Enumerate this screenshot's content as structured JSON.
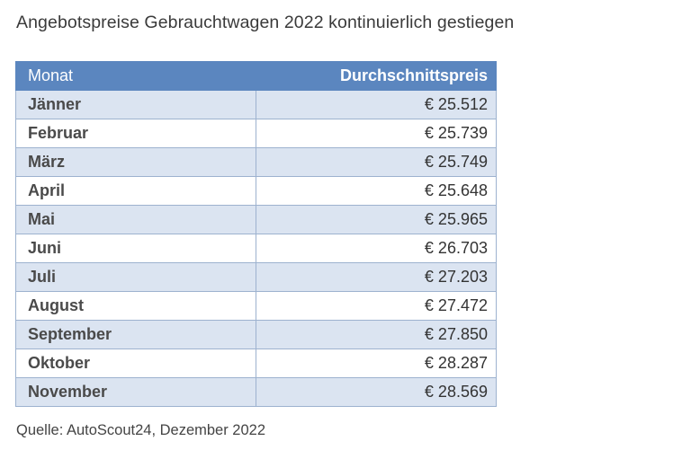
{
  "title": "Angebotspreise Gebrauchtwagen 2022 kontinuierlich gestiegen",
  "source": "Quelle: AutoScout24, Dezember 2022",
  "chart_data": {
    "type": "table",
    "title": "Angebotspreise Gebrauchtwagen 2022 kontinuierlich gestiegen",
    "columns": [
      "Monat",
      "Durchschnittspreis"
    ],
    "rows": [
      {
        "month": "Jänner",
        "price": "€ 25.512",
        "value": 25512
      },
      {
        "month": "Februar",
        "price": "€ 25.739",
        "value": 25739
      },
      {
        "month": "März",
        "price": "€ 25.749",
        "value": 25749
      },
      {
        "month": "April",
        "price": "€ 25.648",
        "value": 25648
      },
      {
        "month": "Mai",
        "price": "€ 25.965",
        "value": 25965
      },
      {
        "month": "Juni",
        "price": "€ 26.703",
        "value": 26703
      },
      {
        "month": "Juli",
        "price": "€ 27.203",
        "value": 27203
      },
      {
        "month": "August",
        "price": "€ 27.472",
        "value": 27472
      },
      {
        "month": "September",
        "price": "€ 27.850",
        "value": 27850
      },
      {
        "month": "Oktober",
        "price": "€ 28.287",
        "value": 28287
      },
      {
        "month": "November",
        "price": "€ 28.569",
        "value": 28569
      }
    ],
    "colors": {
      "header": "#5b86bf",
      "row_alt": "#dbe4f1",
      "row_plain": "#ffffff",
      "border": "#9db2cf"
    }
  }
}
